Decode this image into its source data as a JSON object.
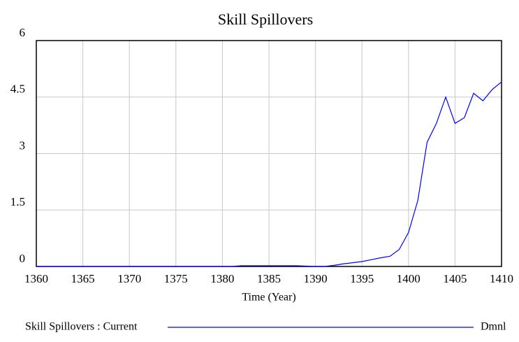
{
  "chart_data": {
    "type": "line",
    "title": "Skill Spillovers",
    "xlabel": "Time (Year)",
    "x": [
      1360,
      1361,
      1362,
      1363,
      1364,
      1365,
      1366,
      1367,
      1368,
      1369,
      1370,
      1371,
      1372,
      1373,
      1374,
      1375,
      1376,
      1377,
      1378,
      1379,
      1380,
      1381,
      1382,
      1383,
      1384,
      1385,
      1386,
      1387,
      1388,
      1389,
      1390,
      1391,
      1392,
      1393,
      1394,
      1395,
      1396,
      1397,
      1398,
      1399,
      1400,
      1401,
      1402,
      1403,
      1404,
      1405,
      1406,
      1407,
      1408,
      1409,
      1410
    ],
    "series": [
      {
        "name": "Skill Spillovers : Current",
        "color": "#0000ff",
        "values": [
          0,
          0,
          0,
          0,
          0,
          0,
          0,
          0,
          0,
          0,
          0,
          0,
          0,
          0,
          0,
          0,
          0,
          0,
          0,
          0,
          0,
          0,
          0.02,
          0.02,
          0.02,
          0.02,
          0.02,
          0.02,
          0.02,
          0.01,
          0,
          0,
          0.03,
          0.07,
          0.1,
          0.13,
          0.18,
          0.23,
          0.27,
          0.45,
          0.9,
          1.75,
          3.3,
          3.8,
          4.5,
          3.8,
          3.95,
          4.6,
          4.4,
          4.7,
          4.9
        ]
      }
    ],
    "unit": "Dmnl",
    "xlim": [
      1360,
      1410
    ],
    "xticks": [
      1360,
      1365,
      1370,
      1375,
      1380,
      1385,
      1390,
      1395,
      1400,
      1405,
      1410
    ],
    "ylim": [
      0,
      6
    ],
    "yticks": [
      0,
      1.5,
      3,
      4.5,
      6
    ],
    "grid": true
  }
}
